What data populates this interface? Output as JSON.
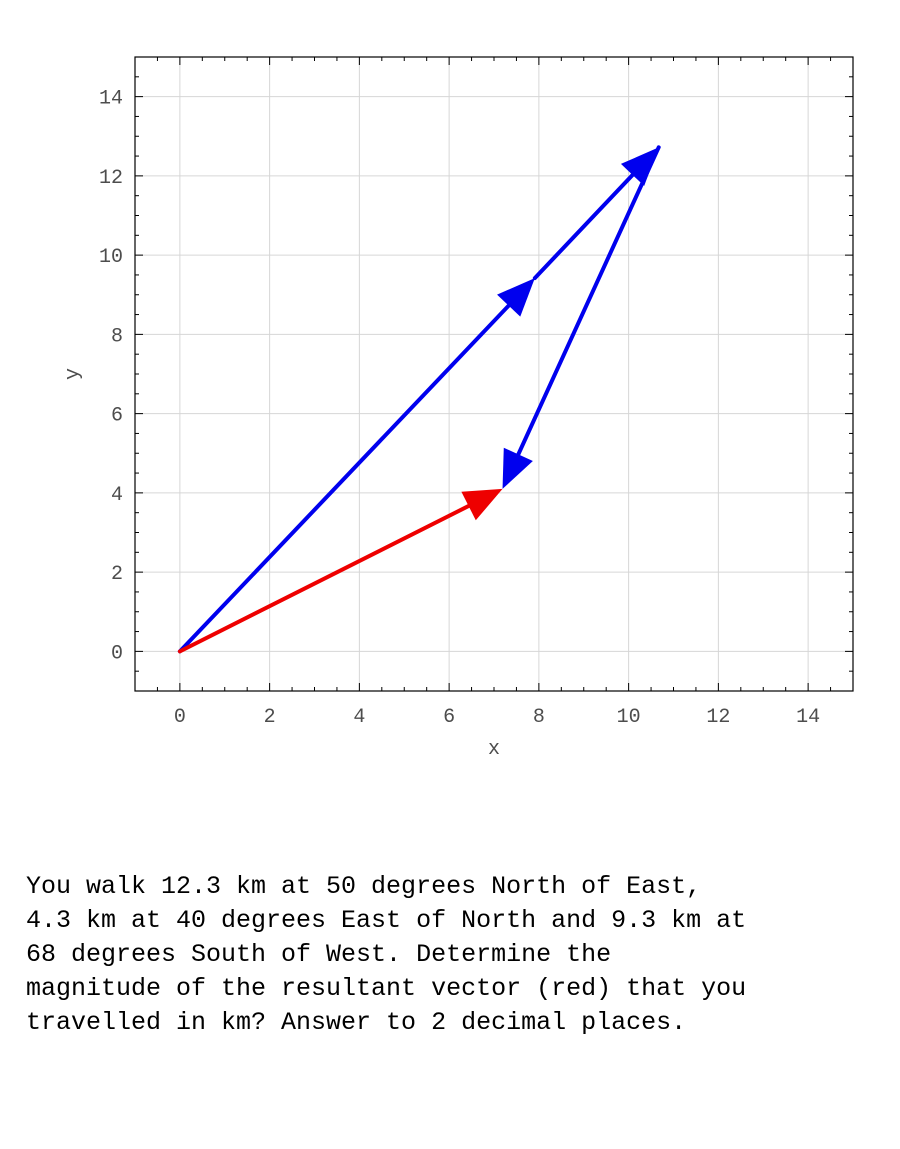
{
  "chart_data": {
    "type": "line",
    "title": "",
    "xlabel": "x",
    "ylabel": "y",
    "xlim": [
      -1,
      15
    ],
    "ylim": [
      -1,
      15
    ],
    "x_ticks": [
      "0",
      "2",
      "4",
      "6",
      "8",
      "10",
      "12",
      "14"
    ],
    "y_ticks": [
      "0",
      "2",
      "4",
      "6",
      "8",
      "10",
      "12",
      "14"
    ],
    "grid": true,
    "series": [
      {
        "color": "#0000ee",
        "points": [
          [
            0,
            0
          ],
          [
            7.91,
            9.42
          ],
          [
            10.67,
            12.72
          ],
          [
            7.19,
            4.1
          ]
        ]
      },
      {
        "color": "#ee0000",
        "points": [
          [
            0,
            0
          ],
          [
            7.19,
            4.1
          ]
        ]
      }
    ],
    "vectors": [
      {
        "color": "#0000ee",
        "from": [
          0,
          0
        ],
        "to": [
          7.91,
          9.42
        ]
      },
      {
        "color": "#0000ee",
        "from": [
          7.91,
          9.42
        ],
        "to": [
          10.67,
          12.72
        ]
      },
      {
        "color": "#0000ee",
        "from": [
          10.67,
          12.72
        ],
        "to": [
          7.19,
          4.1
        ]
      },
      {
        "color": "#ee0000",
        "from": [
          0,
          0
        ],
        "to": [
          7.19,
          4.1
        ]
      }
    ]
  },
  "question": {
    "text": "You walk 12.3 km at 50 degrees North of East,\n4.3 km at 40 degrees East of North and 9.3 km at\n68 degrees South of West.  Determine the\nmagnitude of the resultant vector (red) that you\ntravelled in km? Answer to 2 decimal places."
  }
}
